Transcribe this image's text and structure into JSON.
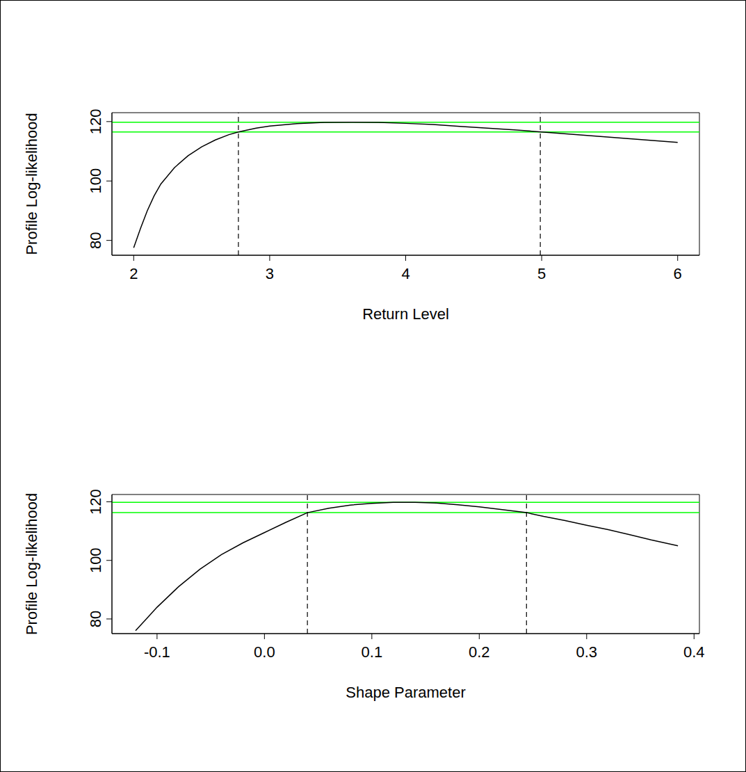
{
  "chart_data": [
    {
      "type": "line",
      "xlabel": "Return Level",
      "ylabel": "Profile Log-likelihood",
      "x": [
        2,
        2.05,
        2.1,
        2.15,
        2.2,
        2.3,
        2.4,
        2.5,
        2.6,
        2.7,
        2.77,
        2.9,
        3.0,
        3.2,
        3.4,
        3.6,
        3.8,
        4.0,
        4.2,
        4.4,
        4.6,
        4.8,
        5.0,
        5.2,
        5.4,
        5.6,
        5.8,
        6.0
      ],
      "values": [
        77.5,
        84,
        90,
        95,
        99,
        104.5,
        108.5,
        111.5,
        113.8,
        115.6,
        116.5,
        117.8,
        118.5,
        119.3,
        119.7,
        119.8,
        119.7,
        119.4,
        119,
        118.4,
        117.8,
        117.2,
        116.5,
        115.8,
        115.1,
        114.4,
        113.7,
        113.0
      ],
      "color": "#000000",
      "line_style": "solid",
      "xlim": [
        1.84,
        6.16
      ],
      "xticks": [
        2,
        3,
        4,
        5,
        6
      ],
      "ylim": [
        75,
        123
      ],
      "yticks": [
        80,
        100,
        120
      ],
      "hlines": {
        "values": [
          119.8,
          116.5
        ],
        "color": "#00ff00",
        "line_style": "solid"
      },
      "vlines": {
        "values": [
          2.77,
          4.99
        ],
        "color": "#000000",
        "line_style": "dashed"
      }
    },
    {
      "type": "line",
      "xlabel": "Shape Parameter",
      "ylabel": "Profile Log-likelihood",
      "x": [
        -0.12,
        -0.11,
        -0.1,
        -0.08,
        -0.06,
        -0.04,
        -0.02,
        0,
        0.02,
        0.04,
        0.06,
        0.08,
        0.1,
        0.12,
        0.14,
        0.16,
        0.18,
        0.2,
        0.22,
        0.244,
        0.26,
        0.28,
        0.3,
        0.32,
        0.34,
        0.36,
        0.385
      ],
      "values": [
        76,
        80,
        84,
        91,
        97,
        102,
        106,
        109.5,
        113,
        116.3,
        117.8,
        118.9,
        119.5,
        119.8,
        119.8,
        119.6,
        119,
        118.3,
        117.4,
        116.3,
        115,
        113.6,
        112,
        110.5,
        108.8,
        107,
        105
      ],
      "color": "#000000",
      "line_style": "solid",
      "xlim": [
        -0.142,
        0.405
      ],
      "xticks": [
        -0.1,
        {
          "value": 0,
          "label": "0.0"
        },
        0.1,
        0.2,
        0.3,
        0.4
      ],
      "ylim": [
        75,
        122.5
      ],
      "yticks": [
        80,
        100,
        120
      ],
      "hlines": {
        "values": [
          119.8,
          116.3
        ],
        "color": "#00ff00",
        "line_style": "solid"
      },
      "vlines": {
        "values": [
          0.04,
          0.244
        ],
        "color": "#000000",
        "line_style": "dashed"
      }
    }
  ]
}
